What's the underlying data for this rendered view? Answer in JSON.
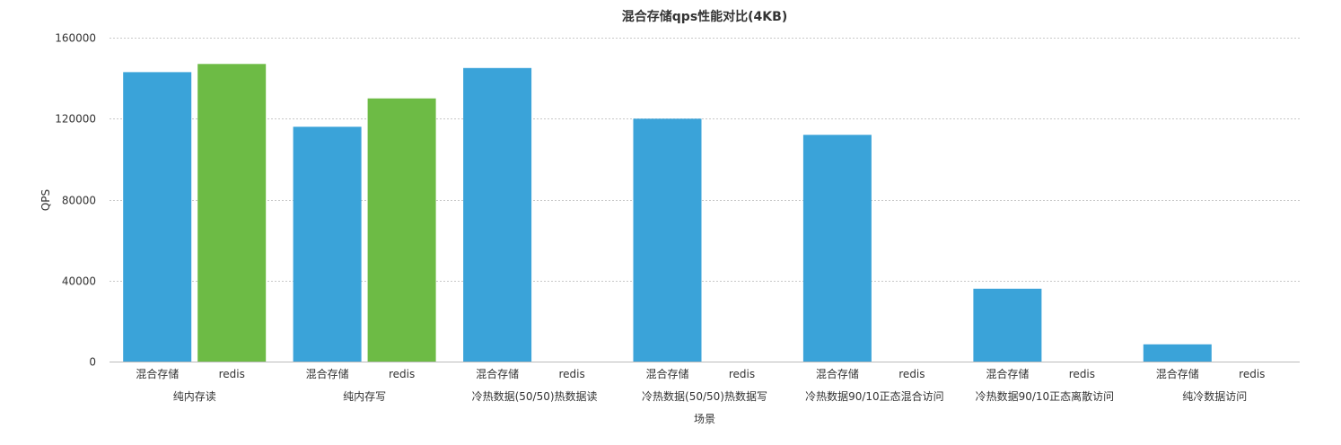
{
  "chart_data": {
    "type": "bar",
    "title": "混合存储qps性能对比(4KB)",
    "xlabel": "场景",
    "ylabel": "QPS",
    "ylim": [
      0,
      160000
    ],
    "yticks": [
      0,
      40000,
      80000,
      120000,
      160000
    ],
    "grid": true,
    "sub_categories": [
      "混合存储",
      "redis"
    ],
    "categories": [
      "纯内存读",
      "纯内存写",
      "冷热数据(50/50)热数据读",
      "冷热数据(50/50)热数据写",
      "冷热数据90/10正态混合访问",
      "冷热数据90/10正态离散访问",
      "纯冷数据访问"
    ],
    "series": [
      {
        "values": [
          143000,
          116000,
          145000,
          120000,
          112000,
          36000,
          8500
        ],
        "color": "#3aa3d9"
      },
      {
        "values": [
          147000,
          130000,
          null,
          null,
          null,
          null,
          null
        ],
        "color": "#6dbb45"
      }
    ]
  }
}
